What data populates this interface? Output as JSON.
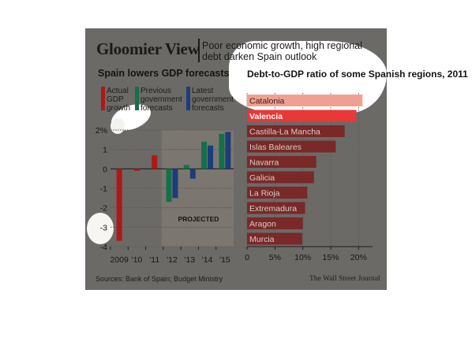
{
  "header": {
    "title": "Gloomier View",
    "subtitle": "Poor economic growth, high regional debt darken Spain outlook"
  },
  "left_panel": {
    "title": "Spain lowers GDP forecasts",
    "legend": [
      {
        "label": "Actual GDP growth",
        "color": "#b01818"
      },
      {
        "label": "Previous government forecasts",
        "color": "#14704a"
      },
      {
        "label": "Latest government forecasts",
        "color": "#1c3c7a"
      }
    ]
  },
  "right_panel": {
    "title": "Debt-to-GDP ratio of some Spanish regions, 2011"
  },
  "footer": {
    "source": "Sources: Bank of Spain; Budget Ministry",
    "publisher": "The Wall Street Journal"
  },
  "chart_data": [
    {
      "type": "bar",
      "title": "Spain lowers GDP forecasts",
      "categories": [
        "2009",
        "'10",
        "'11",
        "'12",
        "'13",
        "'14",
        "'15"
      ],
      "series": [
        {
          "name": "Actual GDP growth",
          "color": "#b01818",
          "values": [
            -3.7,
            -0.1,
            0.7,
            null,
            null,
            null,
            null
          ]
        },
        {
          "name": "Previous government forecasts",
          "color": "#14704a",
          "values": [
            null,
            null,
            null,
            -1.7,
            0.2,
            1.4,
            1.8
          ]
        },
        {
          "name": "Latest government forecasts",
          "color": "#1c3c7a",
          "values": [
            null,
            null,
            null,
            -1.5,
            -0.5,
            1.2,
            1.9
          ]
        }
      ],
      "y_ticks": [
        "2%",
        "1",
        "0",
        "-1",
        "-2",
        "-3",
        "-4"
      ],
      "ylim": [
        -4,
        2
      ],
      "annotation": "PROJECTED",
      "projected_range": [
        "'12",
        "'15"
      ],
      "grid": true
    },
    {
      "type": "bar",
      "orientation": "horizontal",
      "title": "Debt-to-GDP ratio of some Spanish regions, 2011",
      "categories": [
        "Catalonia",
        "Valencia",
        "Castilla-La Mancha",
        "Islas Baleares",
        "Navarra",
        "Galicia",
        "La Rioja",
        "Extremadura",
        "Aragon",
        "Murcia"
      ],
      "values": [
        20.7,
        19.6,
        17.5,
        15.9,
        12.4,
        12.0,
        10.8,
        10.4,
        10.0,
        9.9
      ],
      "highlight": {
        "Catalonia": "#f0a090",
        "Valencia": "#e83838"
      },
      "bar_color": "#7a2828",
      "x_ticks": [
        "0",
        "5%",
        "10%",
        "15%",
        "20%"
      ],
      "xlim": [
        0,
        22.5
      ],
      "grid": true
    }
  ]
}
